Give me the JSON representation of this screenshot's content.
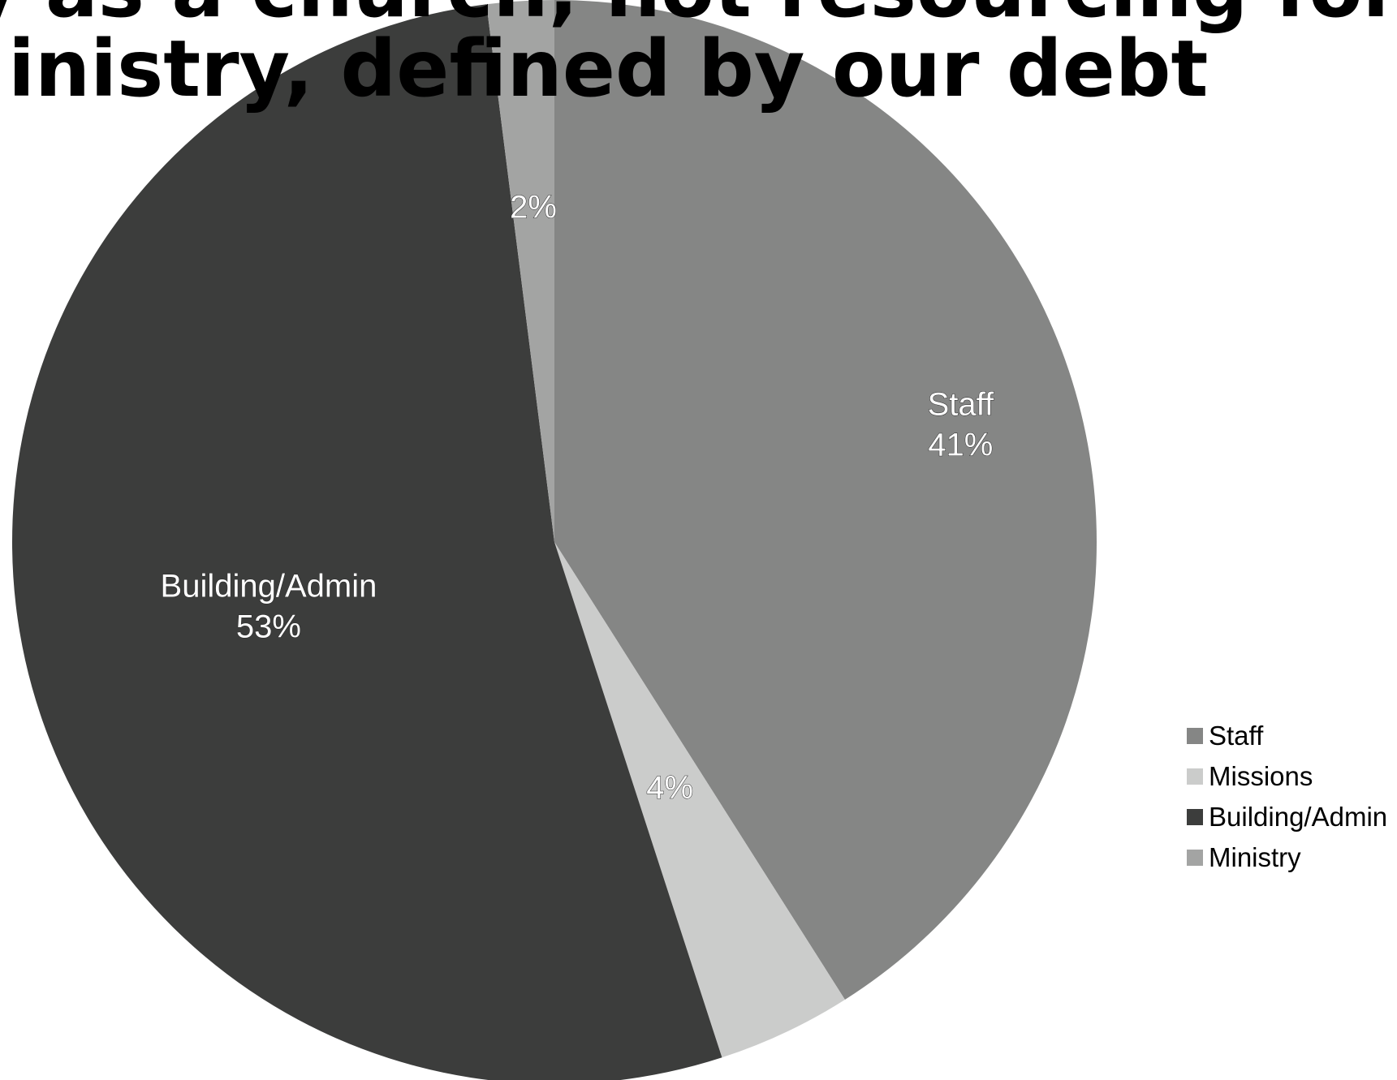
{
  "title_lines": [
    "y as a church, not resourcing for",
    "inistry, defined by our debt"
  ],
  "chart_data": {
    "type": "pie",
    "slices": [
      {
        "name": "Staff",
        "value": 41,
        "color": "#858685",
        "label_name": "Staff",
        "label_value": "41%"
      },
      {
        "name": "Missions",
        "value": 4,
        "color": "#cbcccb",
        "label_name": "",
        "label_value": "4%"
      },
      {
        "name": "Building/Admin",
        "value": 53,
        "color": "#3c3d3c",
        "label_name": "Building/Admin",
        "label_value": "53%"
      },
      {
        "name": "Ministry",
        "value": 2,
        "color": "#a3a4a3",
        "label_name": "",
        "label_value": "2%"
      }
    ],
    "legend": [
      "Staff",
      "Missions",
      "Building/Admin",
      "Ministry"
    ],
    "legend_position": "right"
  }
}
